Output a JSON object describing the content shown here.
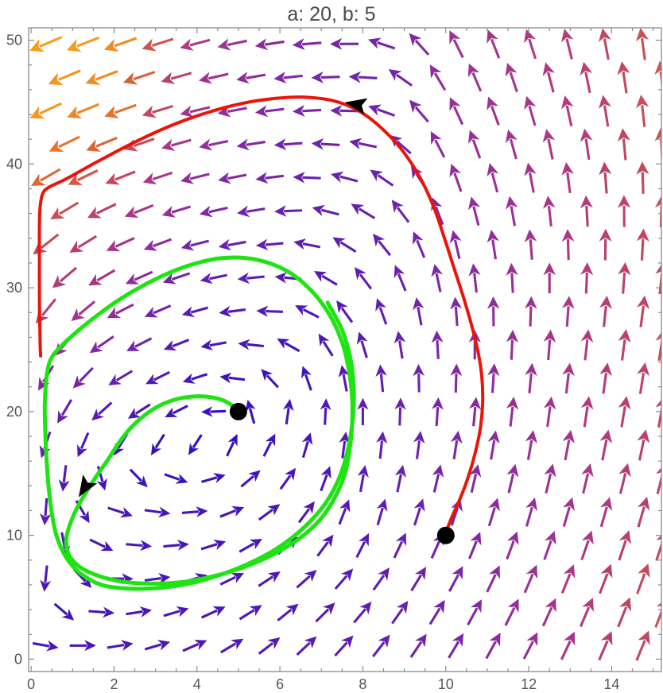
{
  "title": "a: 20, b: 5",
  "colors": {
    "background": "#ffffff",
    "frame": "#8a8a8a",
    "tick": "#8a8a8a",
    "tick_label": "#555555",
    "title_color": "#4a4a4a",
    "trajectory_red": "#ec1309",
    "trajectory_green": "#1fe312",
    "marker_black": "#000000"
  },
  "chart_data": {
    "type": "vector_field_phase_portrait",
    "title": "a: 20, b: 5",
    "params": {
      "a": 20,
      "b": 5
    },
    "axes": {
      "x_range": [
        -0.06,
        15.2
      ],
      "y_range": [
        -1,
        51
      ],
      "x_ticks": [
        0,
        2,
        4,
        6,
        8,
        10,
        12,
        14
      ],
      "y_ticks": [
        0,
        10,
        20,
        30,
        40,
        50
      ],
      "x_minor_step": 0.5,
      "y_minor_step": 2,
      "grid": false,
      "frame": true
    },
    "fixed_points": [
      {
        "x": 5,
        "y": 20,
        "label": "equilibrium-focus"
      },
      {
        "x": 10,
        "y": 10,
        "label": "initial-condition"
      }
    ],
    "vector_field": {
      "note": "direction angles in degrees (0=east, 90=north), speed normalized 0-1, sampled on control grid; arrows colored by speed",
      "xs": [
        0,
        2,
        4,
        6,
        8,
        10,
        12,
        15.2
      ],
      "ys": [
        0,
        6,
        12,
        20,
        28,
        36,
        44,
        51
      ],
      "angles_deg": [
        [
          0,
          10,
          25,
          40,
          50,
          58,
          62,
          68
        ],
        [
          255,
          0,
          18,
          35,
          50,
          60,
          66,
          70
        ],
        [
          258,
          340,
          5,
          40,
          75,
          72,
          74,
          74
        ],
        [
          250,
          215,
          200,
          80,
          90,
          86,
          83,
          80
        ],
        [
          235,
          208,
          195,
          175,
          115,
          95,
          88,
          82
        ],
        [
          215,
          204,
          194,
          186,
          148,
          108,
          98,
          88
        ],
        [
          206,
          200,
          193,
          186,
          176,
          116,
          106,
          95
        ],
        [
          203,
          200,
          195,
          188,
          178,
          118,
          108,
          97
        ]
      ],
      "speeds": [
        [
          0.28,
          0.24,
          0.24,
          0.28,
          0.34,
          0.42,
          0.55,
          0.78
        ],
        [
          0.3,
          0.22,
          0.2,
          0.24,
          0.3,
          0.42,
          0.58,
          0.8
        ],
        [
          0.35,
          0.22,
          0.18,
          0.22,
          0.3,
          0.42,
          0.55,
          0.72
        ],
        [
          0.42,
          0.28,
          0.12,
          0.15,
          0.32,
          0.45,
          0.58,
          0.75
        ],
        [
          0.72,
          0.55,
          0.28,
          0.25,
          0.32,
          0.45,
          0.58,
          0.76
        ],
        [
          0.85,
          0.68,
          0.48,
          0.36,
          0.36,
          0.5,
          0.6,
          0.78
        ],
        [
          1.0,
          0.92,
          0.6,
          0.45,
          0.4,
          0.55,
          0.62,
          0.8
        ],
        [
          1.0,
          1.0,
          0.65,
          0.5,
          0.42,
          0.58,
          0.65,
          0.82
        ]
      ],
      "arrow_grid": {
        "x0": 0.35,
        "dx": 0.9,
        "cols": 17,
        "y_top": 49.7,
        "dy": 2.7,
        "rows": 19,
        "stagger_x": 0.45
      },
      "colormap_stops": [
        [
          0.0,
          "#2E10C4"
        ],
        [
          0.22,
          "#4A16B8"
        ],
        [
          0.38,
          "#6B22AE"
        ],
        [
          0.52,
          "#8F2C9D"
        ],
        [
          0.65,
          "#AE3984"
        ],
        [
          0.75,
          "#C24760"
        ],
        [
          0.85,
          "#D85F3C"
        ],
        [
          0.93,
          "#EE7D26"
        ],
        [
          1.0,
          "#F6A01C"
        ]
      ]
    },
    "trajectories": [
      {
        "name": "red-trajectory",
        "color": "#ec1309",
        "start": [
          10,
          10
        ],
        "arrowhead": {
          "x": 7.85,
          "y": 44.8,
          "screen_angle_deg": 191
        },
        "points": [
          [
            10.02,
            10.4
          ],
          [
            10.15,
            11.5
          ],
          [
            10.35,
            13
          ],
          [
            10.55,
            14.8
          ],
          [
            10.72,
            16.8
          ],
          [
            10.84,
            18.8
          ],
          [
            10.89,
            20.8
          ],
          [
            10.87,
            22.8
          ],
          [
            10.78,
            24.8
          ],
          [
            10.62,
            27
          ],
          [
            10.42,
            29.3
          ],
          [
            10.18,
            31.8
          ],
          [
            9.95,
            34.2
          ],
          [
            9.7,
            36.6
          ],
          [
            9.38,
            38.9
          ],
          [
            8.95,
            41.1
          ],
          [
            8.45,
            42.9
          ],
          [
            7.9,
            44.3
          ],
          [
            7.3,
            45.1
          ],
          [
            6.6,
            45.4
          ],
          [
            5.9,
            45.3
          ],
          [
            5.1,
            44.9
          ],
          [
            4.2,
            44.1
          ],
          [
            3.3,
            43
          ],
          [
            2.4,
            41.6
          ],
          [
            1.55,
            40.1
          ],
          [
            0.85,
            38.8
          ],
          [
            0.42,
            38.1
          ],
          [
            0.28,
            37.6
          ],
          [
            0.22,
            36.6
          ],
          [
            0.2,
            35
          ],
          [
            0.2,
            32.5
          ],
          [
            0.2,
            29.5
          ],
          [
            0.21,
            27
          ],
          [
            0.22,
            25.2
          ],
          [
            0.23,
            24.5
          ]
        ]
      },
      {
        "name": "green-trajectory",
        "color": "#1fe312",
        "start": [
          5,
          20
        ],
        "arrowhead": {
          "x": 1.3,
          "y": 13.9,
          "screen_angle_deg": 122
        },
        "points": [
          [
            4.85,
            20.5
          ],
          [
            4.6,
            20.95
          ],
          [
            4.25,
            21.2
          ],
          [
            3.85,
            21.2
          ],
          [
            3.45,
            20.95
          ],
          [
            3.05,
            20.4
          ],
          [
            2.7,
            19.6
          ],
          [
            2.38,
            18.6
          ],
          [
            2.1,
            17.4
          ],
          [
            1.85,
            16.1
          ],
          [
            1.6,
            14.9
          ],
          [
            1.35,
            13.6
          ],
          [
            1.12,
            12.3
          ],
          [
            0.95,
            11.0
          ],
          [
            0.85,
            9.8
          ],
          [
            0.88,
            8.7
          ],
          [
            1.05,
            7.8
          ],
          [
            1.35,
            7.1
          ],
          [
            1.8,
            6.55
          ],
          [
            2.35,
            6.2
          ],
          [
            3.0,
            6.1
          ],
          [
            3.7,
            6.25
          ],
          [
            4.4,
            6.7
          ],
          [
            5.1,
            7.4
          ],
          [
            5.8,
            8.4
          ],
          [
            6.45,
            9.7
          ],
          [
            6.95,
            11.2
          ],
          [
            7.3,
            12.9
          ],
          [
            7.55,
            14.8
          ],
          [
            7.68,
            16.9
          ],
          [
            7.74,
            19.0
          ],
          [
            7.74,
            21.2
          ],
          [
            7.66,
            23.4
          ],
          [
            7.5,
            25.6
          ],
          [
            7.2,
            27.8
          ],
          [
            6.75,
            29.8
          ],
          [
            6.15,
            31.4
          ],
          [
            5.4,
            32.3
          ],
          [
            4.6,
            32.4
          ],
          [
            3.8,
            31.8
          ],
          [
            3.0,
            30.7
          ],
          [
            2.2,
            29.2
          ],
          [
            1.45,
            27.4
          ],
          [
            0.85,
            25.7
          ],
          [
            0.52,
            24.5
          ],
          [
            0.4,
            23.4
          ],
          [
            0.35,
            22.0
          ],
          [
            0.33,
            20.3
          ],
          [
            0.34,
            18.4
          ],
          [
            0.37,
            16.3
          ],
          [
            0.42,
            14.0
          ],
          [
            0.5,
            11.8
          ],
          [
            0.62,
            9.9
          ],
          [
            0.85,
            8.2
          ],
          [
            1.2,
            6.9
          ],
          [
            1.7,
            6.0
          ],
          [
            2.35,
            5.7
          ],
          [
            3.05,
            5.75
          ],
          [
            3.8,
            6.1
          ],
          [
            4.55,
            6.8
          ],
          [
            5.3,
            7.8
          ],
          [
            6.0,
            9.1
          ],
          [
            6.6,
            10.7
          ],
          [
            7.1,
            12.6
          ],
          [
            7.45,
            14.8
          ],
          [
            7.65,
            17.1
          ],
          [
            7.76,
            19.5
          ],
          [
            7.78,
            21.9
          ],
          [
            7.7,
            24.3
          ],
          [
            7.5,
            26.6
          ],
          [
            7.15,
            28.8
          ]
        ]
      }
    ]
  }
}
